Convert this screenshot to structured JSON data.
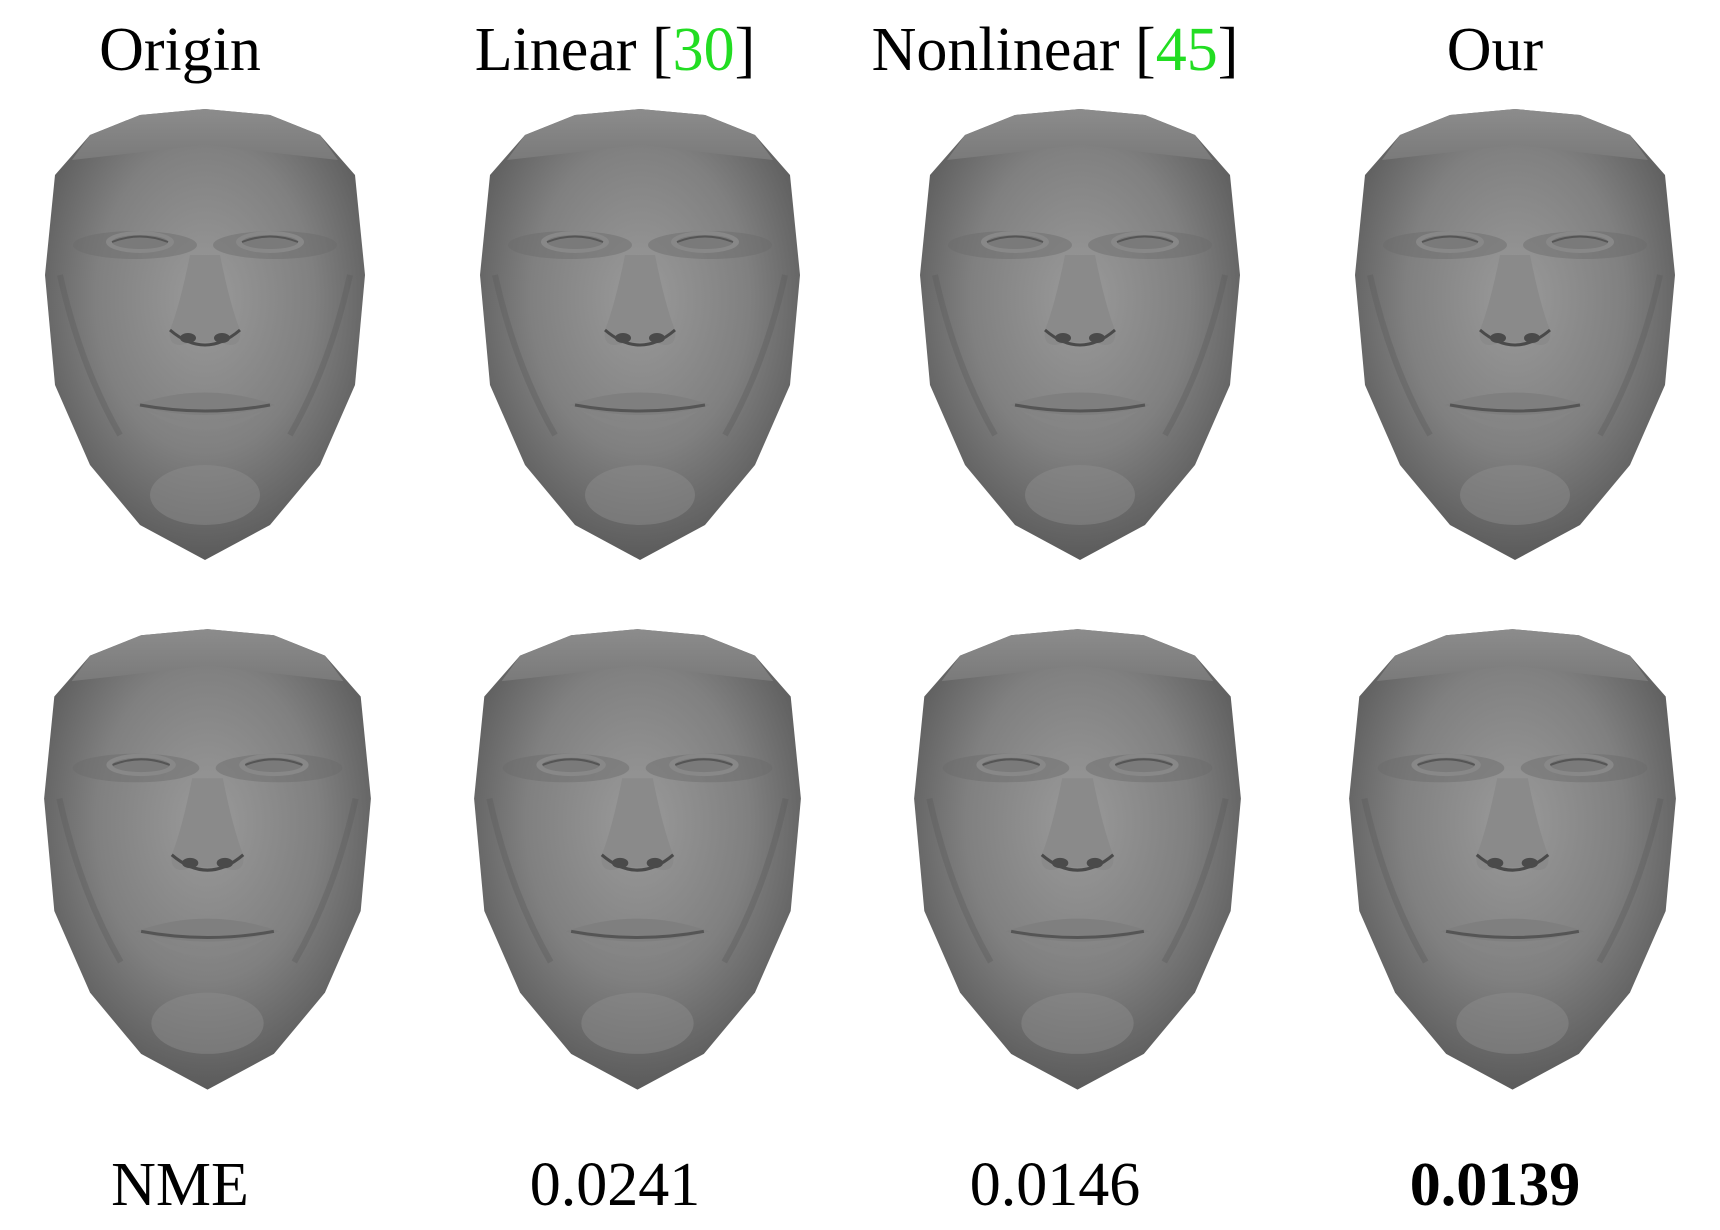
{
  "columns": [
    {
      "title": "Origin",
      "citation": ""
    },
    {
      "title": "Linear [",
      "citation": "30",
      "close": "]"
    },
    {
      "title": "Nonlinear [",
      "citation": "45",
      "close": "]"
    },
    {
      "title": "Our",
      "citation": ""
    }
  ],
  "metric_row": {
    "label": "NME",
    "values": [
      "0.0241",
      "0.0146",
      "0.0139"
    ],
    "best_index": 2
  },
  "colors": {
    "citation": "#22dd22",
    "mesh_light": "#9a9a9a",
    "mesh_mid": "#7a7a7a",
    "mesh_dark": "#4a4a4a"
  }
}
